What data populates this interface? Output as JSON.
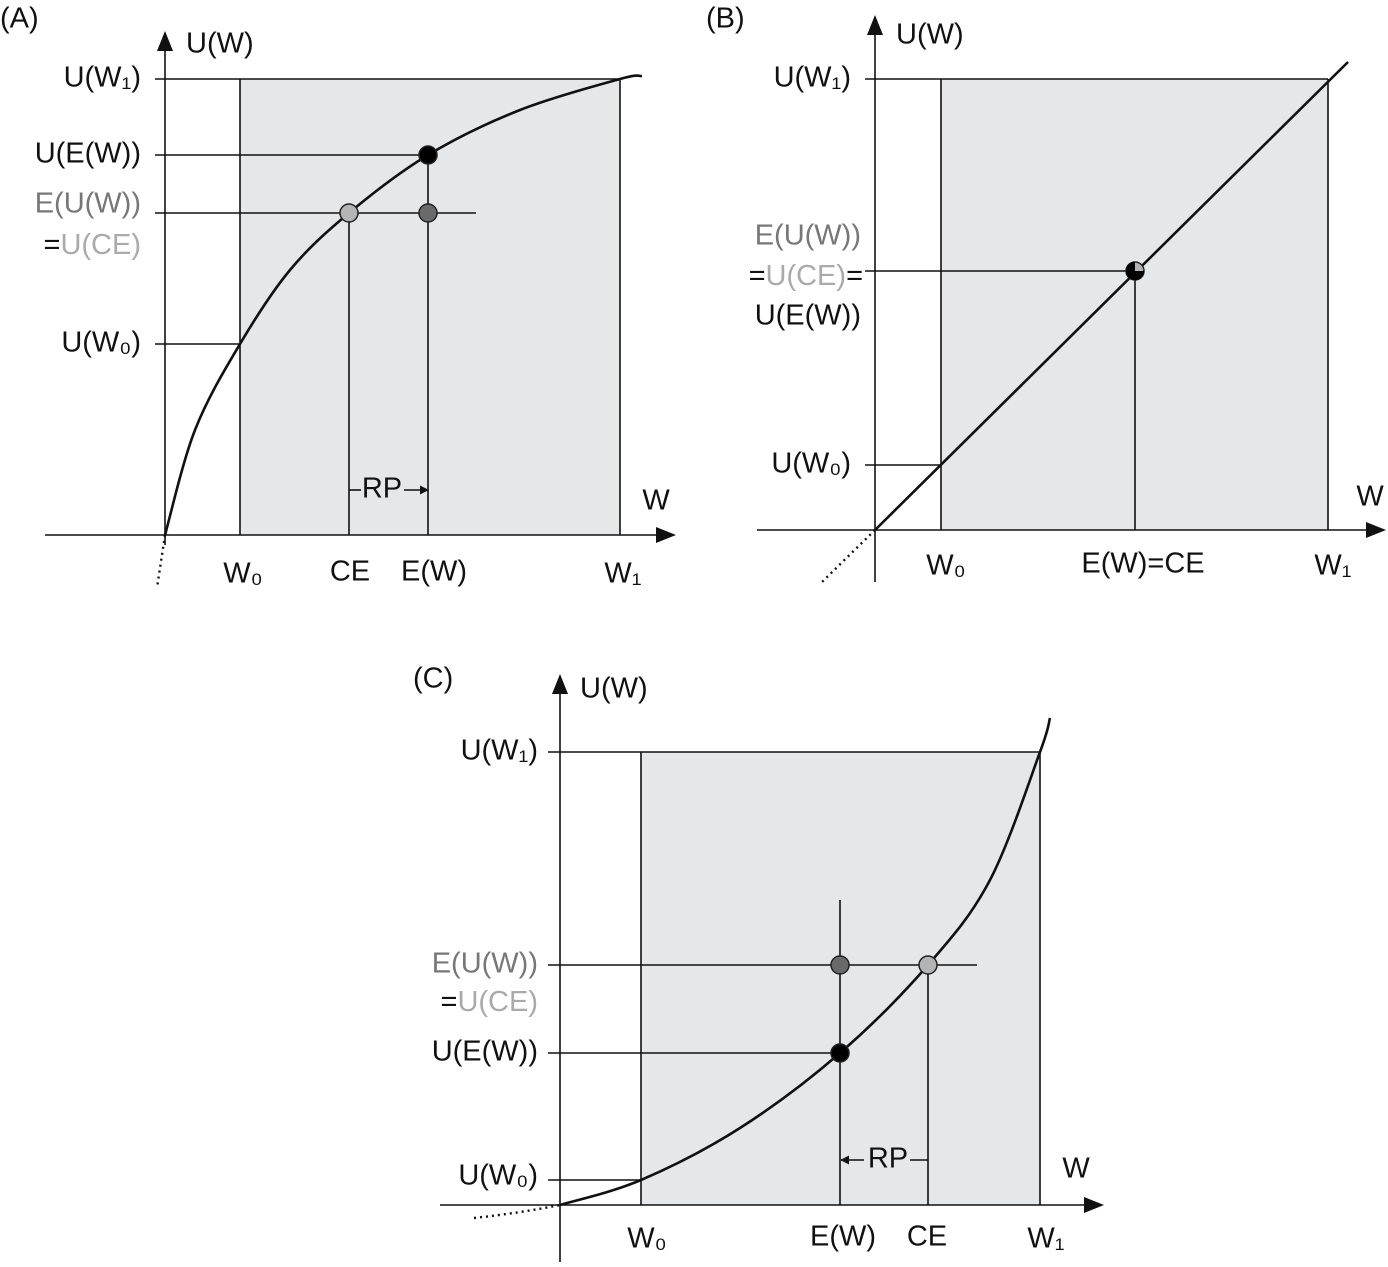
{
  "panels": [
    {
      "label": "(A)",
      "y_axis": "U(W)",
      "x_axis": "W",
      "y_labels": {
        "u_w1": "U(W₁)",
        "u_ew": "U(E(W))",
        "eu_w": "E(U(W))",
        "eq": "=",
        "u_ce": "U(CE)",
        "u_w0": "U(W₀)"
      },
      "x_labels": {
        "w0": "W₀",
        "ce": "CE",
        "ew": "E(W)",
        "w1": "W₁"
      },
      "annotation": "RP"
    },
    {
      "label": "(B)",
      "y_axis": "U(W)",
      "x_axis": "W",
      "y_labels": {
        "u_w1": "U(W₁)",
        "eu_w": "E(U(W))",
        "eq": "=",
        "u_ce": "U(CE)",
        "eq2": "=",
        "u_ew": "U(E(W))",
        "u_w0": "U(W₀)"
      },
      "x_labels": {
        "w0": "W₀",
        "ew_ce": "E(W)=CE",
        "w1": "W₁"
      }
    },
    {
      "label": "(C)",
      "y_axis": "U(W)",
      "x_axis": "W",
      "y_labels": {
        "u_w1": "U(W₁)",
        "eu_w": "E(U(W))",
        "eq": "=",
        "u_ce": "U(CE)",
        "u_ew": "U(E(W))",
        "u_w0": "U(W₀)"
      },
      "x_labels": {
        "w0": "W₀",
        "ew": "E(W)",
        "ce": "CE",
        "w1": "W₁"
      },
      "annotation": "RP"
    }
  ]
}
